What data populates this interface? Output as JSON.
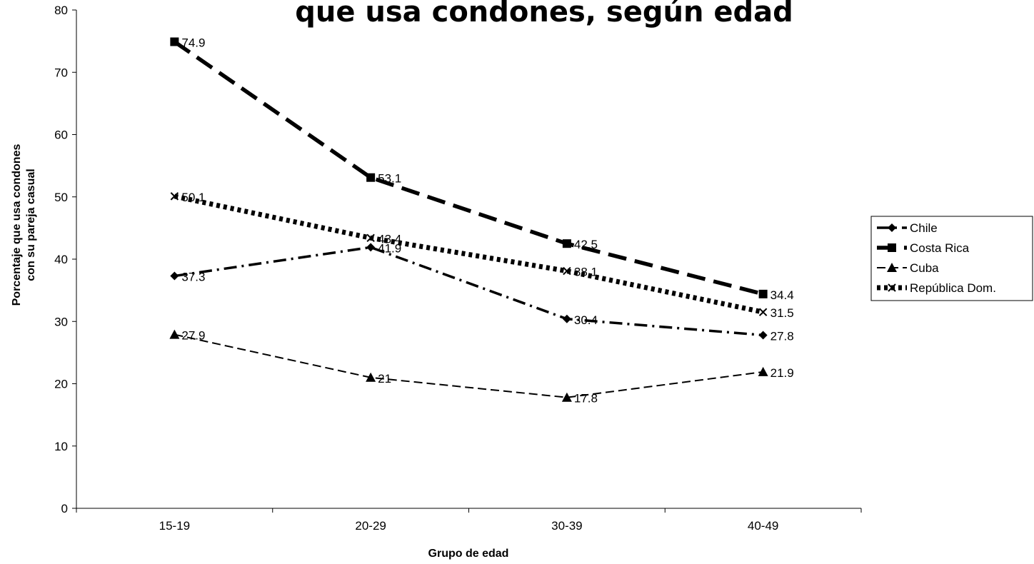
{
  "chart_data": {
    "type": "line",
    "title": "que usa condones, según edad",
    "xlabel": "Grupo de edad",
    "ylabel_lines": [
      "Porcentaje que usa condones",
      "con su pareja casual"
    ],
    "categories": [
      "15-19",
      "20-29",
      "30-39",
      "40-49"
    ],
    "ylim": [
      0,
      80
    ],
    "yticks": [
      0,
      10,
      20,
      30,
      40,
      50,
      60,
      70,
      80
    ],
    "grid": false,
    "legend_position": "right",
    "series": [
      {
        "name": "Chile",
        "values": [
          37.3,
          41.9,
          30.4,
          27.8
        ],
        "labels": [
          "37.3",
          "41.9",
          "30.4",
          "27.8"
        ],
        "marker": "diamond",
        "line_style": "dash-dot",
        "color": "#000000"
      },
      {
        "name": "Costa Rica",
        "values": [
          74.9,
          53.1,
          42.5,
          34.4
        ],
        "labels": [
          "74.9",
          "53.1",
          "42.5",
          "34.4"
        ],
        "marker": "square",
        "line_style": "long-dash",
        "color": "#000000"
      },
      {
        "name": "Cuba",
        "values": [
          27.9,
          21,
          17.8,
          21.9
        ],
        "labels": [
          "27.9",
          "21",
          "17.8",
          "21.9"
        ],
        "marker": "triangle",
        "line_style": "dashed-thin",
        "color": "#000000"
      },
      {
        "name": "República Dom.",
        "values": [
          50.1,
          43.4,
          38.1,
          31.5
        ],
        "labels": [
          "50.1",
          "43.4",
          "38.1",
          "31.5"
        ],
        "marker": "x",
        "line_style": "dotted-thick",
        "color": "#000000"
      }
    ]
  }
}
